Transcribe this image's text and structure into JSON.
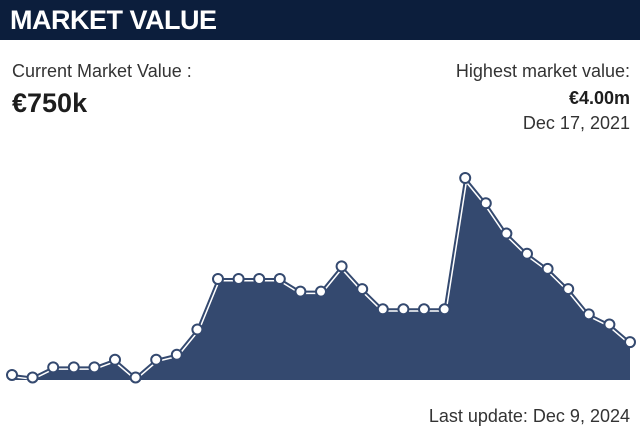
{
  "header": {
    "title": "MARKET VALUE"
  },
  "summary": {
    "current_label": "Current Market Value :",
    "current_value": "€750k",
    "highest_label": "Highest market value:",
    "highest_value": "€4.00m",
    "highest_date": "Dec 17, 2021",
    "last_update": "Last update: Dec 9, 2024"
  },
  "chart_data": {
    "type": "area",
    "categories": [
      null,
      null,
      null,
      null,
      null,
      null,
      null,
      null,
      null,
      null,
      null,
      null,
      null,
      null,
      null,
      null,
      null,
      null,
      null,
      null,
      null,
      null,
      null,
      null,
      null,
      null,
      null,
      null,
      null,
      null,
      null
    ],
    "values": [
      100000,
      50000,
      250000,
      250000,
      250000,
      400000,
      50000,
      400000,
      500000,
      1000000,
      2000000,
      2000000,
      2000000,
      2000000,
      1750000,
      1750000,
      2250000,
      1800000,
      1400000,
      1400000,
      1400000,
      1400000,
      4000000,
      3500000,
      2900000,
      2500000,
      2200000,
      1800000,
      1300000,
      1100000,
      750000
    ],
    "ylim": [
      0,
      4000000
    ],
    "color": "#34496f"
  }
}
